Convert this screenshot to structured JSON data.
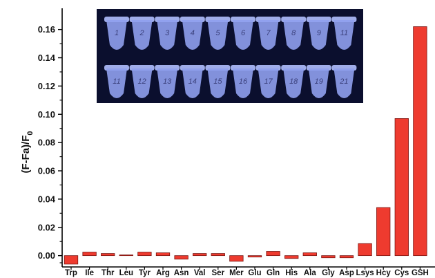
{
  "chart_data": {
    "type": "bar",
    "ylabel_main": "(F-Fa)/F",
    "ylabel_sub": "0",
    "xlabel": "",
    "ylim": [
      -0.008,
      0.175
    ],
    "yticks": [
      "0.00",
      "0.02",
      "0.04",
      "0.06",
      "0.08",
      "0.10",
      "0.12",
      "0.14",
      "0.16"
    ],
    "grid": false,
    "bar_color": "#ee3b2f",
    "categories": [
      "Trp",
      "Ile",
      "Thr",
      "Leu",
      "Tyr",
      "Arg",
      "Asn",
      "Val",
      "Ser",
      "Mer",
      "Glu",
      "Gln",
      "His",
      "Ala",
      "Gly",
      "Asp",
      "Lsys",
      "Hcy",
      "Cys",
      "GSH"
    ],
    "values": [
      -0.006,
      0.0025,
      0.0015,
      0.0005,
      0.0025,
      0.002,
      -0.0025,
      0.0015,
      0.0015,
      -0.004,
      -0.001,
      0.003,
      -0.002,
      0.002,
      -0.0015,
      -0.0015,
      0.0085,
      0.034,
      0.097,
      0.162
    ]
  },
  "inset_photo": {
    "top_row_labels": [
      "1",
      "2",
      "3",
      "4",
      "5",
      "6",
      "7",
      "8",
      "9",
      "11"
    ],
    "bottom_row_labels": [
      "11",
      "12",
      "13",
      "14",
      "15",
      "16",
      "17",
      "18",
      "19",
      "21"
    ],
    "background": "#0b0f2e",
    "tube_color": "#8fa0ee"
  }
}
